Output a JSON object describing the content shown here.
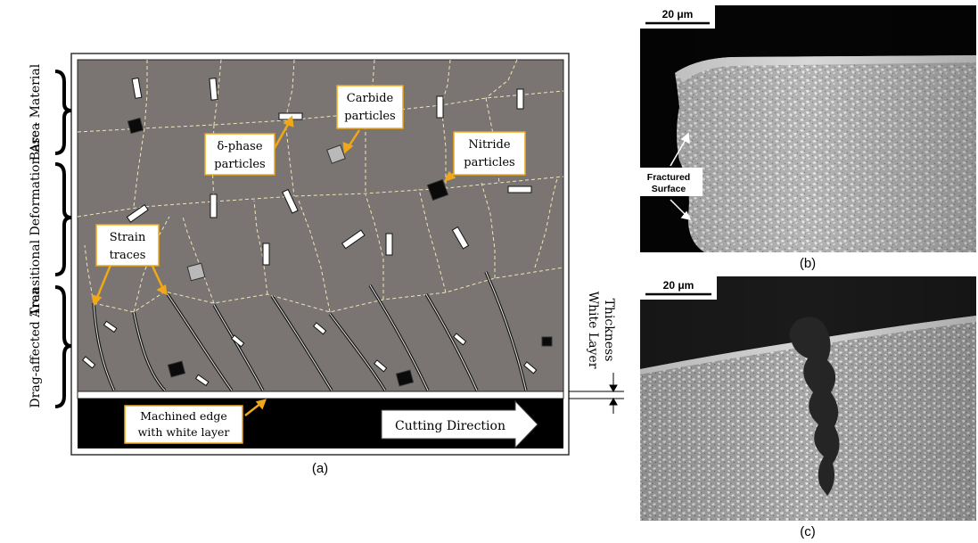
{
  "panel_a": {
    "zones": [
      "Base - Material",
      "Transitional Deformation Area",
      "Drag-affected Area"
    ],
    "callouts": {
      "carbide": [
        "Carbide",
        "particles"
      ],
      "delta": [
        "δ-phase",
        "particles"
      ],
      "nitride": [
        "Nitride",
        "particles"
      ],
      "strain": [
        "Strain",
        "traces"
      ],
      "machined": [
        "Machined edge",
        "with white layer"
      ]
    },
    "cutting_direction": "Cutting Direction",
    "white_layer": [
      "White Layer",
      "Thickness"
    ],
    "caption": "(a)"
  },
  "panel_b": {
    "scale_bar": "20 μm",
    "label": [
      "Fractured",
      "Surface"
    ],
    "caption": "(b)"
  },
  "panel_c": {
    "scale_bar": "20 μm",
    "caption": "(c)"
  },
  "colors": {
    "matrix": "#7a7572",
    "grain_boundary": "#efe6b8",
    "callout_arrow": "#f0a818",
    "base_black": "#000000"
  }
}
